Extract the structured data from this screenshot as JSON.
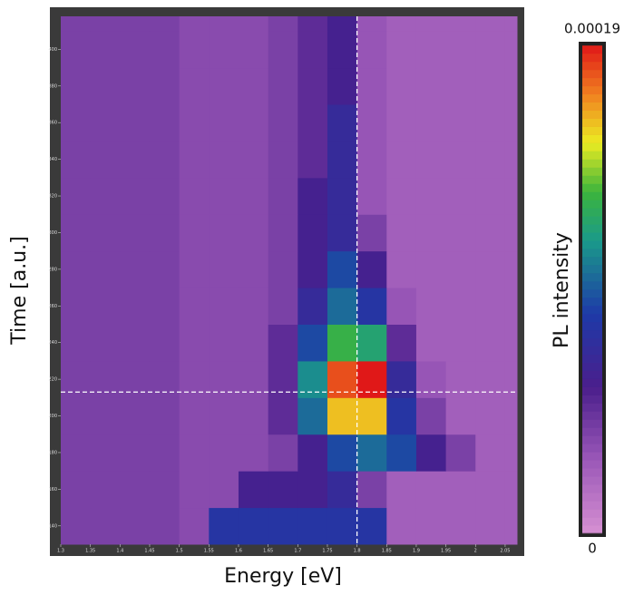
{
  "chart_data": {
    "type": "heatmap",
    "xlabel": "Energy [eV]",
    "ylabel": "Time [a.u.]",
    "colorbar_label": "PL intensity",
    "x_bins": [
      1.3,
      1.35,
      1.4,
      1.45,
      1.5,
      1.55,
      1.6,
      1.65,
      1.7,
      1.75,
      1.8,
      1.85,
      1.9,
      1.95,
      2.0,
      2.05,
      2.07
    ],
    "y_bins": [
      130,
      150,
      170,
      190,
      210,
      230,
      250,
      270,
      290,
      310,
      330,
      350,
      370,
      390,
      410,
      418
    ],
    "z": [
      [
        4e-05,
        4e-05,
        4e-05,
        4e-05,
        3.5e-05,
        8e-05,
        8e-05,
        8e-05,
        8e-05,
        8e-05,
        8e-05,
        2.5e-05,
        2.5e-05,
        2.5e-05,
        2.5e-05,
        2.5e-05
      ],
      [
        4e-05,
        4e-05,
        4e-05,
        4e-05,
        3.5e-05,
        3.5e-05,
        6e-05,
        6e-05,
        6e-05,
        7e-05,
        4e-05,
        2.5e-05,
        2.5e-05,
        2.5e-05,
        2.5e-05,
        2.5e-05
      ],
      [
        4e-05,
        4e-05,
        4e-05,
        4e-05,
        3.5e-05,
        3.5e-05,
        3.5e-05,
        4e-05,
        6e-05,
        9e-05,
        0.0001,
        9e-05,
        6e-05,
        4e-05,
        2.5e-05,
        2.5e-05
      ],
      [
        4e-05,
        4e-05,
        4e-05,
        4e-05,
        3.5e-05,
        3.5e-05,
        3.5e-05,
        5e-05,
        0.0001,
        0.00016,
        0.00016,
        8e-05,
        4e-05,
        2.5e-05,
        2.5e-05,
        2.5e-05
      ],
      [
        4e-05,
        4e-05,
        4e-05,
        4e-05,
        3.5e-05,
        3.5e-05,
        3.5e-05,
        5e-05,
        0.00011,
        0.00018,
        0.00019,
        7e-05,
        3e-05,
        2.5e-05,
        2.5e-05,
        2.5e-05
      ],
      [
        4e-05,
        4e-05,
        4e-05,
        4e-05,
        3.5e-05,
        3.5e-05,
        3.5e-05,
        5e-05,
        9e-05,
        0.00013,
        0.00012,
        5e-05,
        2.5e-05,
        2.5e-05,
        2.5e-05,
        2.5e-05
      ],
      [
        4e-05,
        4e-05,
        4e-05,
        4e-05,
        3.5e-05,
        3.5e-05,
        3.5e-05,
        4e-05,
        7e-05,
        0.0001,
        8e-05,
        3e-05,
        2.5e-05,
        2.5e-05,
        2.5e-05,
        2.5e-05
      ],
      [
        4e-05,
        4e-05,
        4e-05,
        4e-05,
        3.5e-05,
        3.5e-05,
        3.5e-05,
        4e-05,
        6e-05,
        9e-05,
        6e-05,
        2.5e-05,
        2.5e-05,
        2.5e-05,
        2.5e-05,
        2.5e-05
      ],
      [
        4e-05,
        4e-05,
        4e-05,
        4e-05,
        3.5e-05,
        3.5e-05,
        3.5e-05,
        4e-05,
        6e-05,
        7e-05,
        4e-05,
        2.5e-05,
        2.5e-05,
        2.5e-05,
        2.5e-05,
        2.5e-05
      ],
      [
        4e-05,
        4e-05,
        4e-05,
        4e-05,
        3.5e-05,
        3.5e-05,
        3.5e-05,
        4e-05,
        6e-05,
        7e-05,
        3e-05,
        2.5e-05,
        2.5e-05,
        2.5e-05,
        2.5e-05,
        2.5e-05
      ],
      [
        4e-05,
        4e-05,
        4e-05,
        4e-05,
        3.5e-05,
        3.5e-05,
        3.5e-05,
        4e-05,
        5e-05,
        7e-05,
        3e-05,
        2.5e-05,
        2.5e-05,
        2.5e-05,
        2.5e-05,
        2.5e-05
      ],
      [
        4e-05,
        4e-05,
        4e-05,
        4e-05,
        3.5e-05,
        3.5e-05,
        3.5e-05,
        4e-05,
        5e-05,
        7e-05,
        3e-05,
        2.5e-05,
        2.5e-05,
        2.5e-05,
        2.5e-05,
        2.5e-05
      ],
      [
        4e-05,
        4e-05,
        4e-05,
        4e-05,
        3.5e-05,
        3.5e-05,
        3.5e-05,
        4e-05,
        5e-05,
        6e-05,
        3e-05,
        2.5e-05,
        2.5e-05,
        2.5e-05,
        2.5e-05,
        2.5e-05
      ],
      [
        4e-05,
        4e-05,
        4e-05,
        4e-05,
        3.5e-05,
        3.5e-05,
        3.5e-05,
        4e-05,
        5e-05,
        6e-05,
        3e-05,
        2.5e-05,
        2.5e-05,
        2.5e-05,
        2.5e-05,
        2.5e-05
      ],
      [
        4e-05,
        4e-05,
        4e-05,
        4e-05,
        3.5e-05,
        3.5e-05,
        3.5e-05,
        4e-05,
        5e-05,
        6e-05,
        3e-05,
        2.5e-05,
        2.5e-05,
        2.5e-05,
        2.5e-05,
        2.5e-05
      ]
    ],
    "xlim": [
      1.3,
      2.07
    ],
    "ylim": [
      130,
      418
    ],
    "xticks": [
      1.3,
      1.35,
      1.4,
      1.45,
      1.5,
      1.55,
      1.6,
      1.65,
      1.7,
      1.75,
      1.8,
      1.85,
      1.9,
      1.95,
      2,
      2.05
    ],
    "yticks": [
      140,
      160,
      180,
      200,
      220,
      240,
      260,
      280,
      300,
      320,
      340,
      360,
      380,
      400
    ],
    "clim": [
      0,
      0.00019
    ],
    "colorbar_ticks": [
      0,
      0.00019
    ],
    "crosshair": {
      "x": 1.8,
      "y": 213
    }
  }
}
